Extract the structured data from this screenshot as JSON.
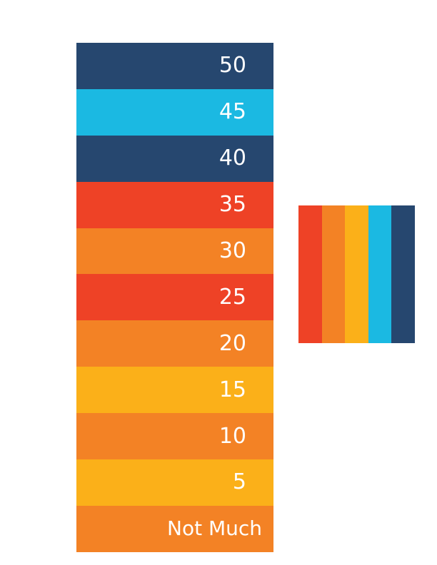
{
  "scale": {
    "bands": [
      {
        "label": "50",
        "color": "#26476f"
      },
      {
        "label": "45",
        "color": "#1bb9e2"
      },
      {
        "label": "40",
        "color": "#26476f"
      },
      {
        "label": "35",
        "color": "#ee4226"
      },
      {
        "label": "30",
        "color": "#f38225"
      },
      {
        "label": "25",
        "color": "#ee4226"
      },
      {
        "label": "20",
        "color": "#f38225"
      },
      {
        "label": "15",
        "color": "#fbb019"
      },
      {
        "label": "10",
        "color": "#f38225"
      },
      {
        "label": "5",
        "color": "#fbb019"
      },
      {
        "label": "Not Much",
        "color": "#f38225"
      }
    ]
  },
  "palette": {
    "swatches": [
      "#ee4226",
      "#f38225",
      "#fbb019",
      "#1bb9e2",
      "#26476f"
    ]
  }
}
